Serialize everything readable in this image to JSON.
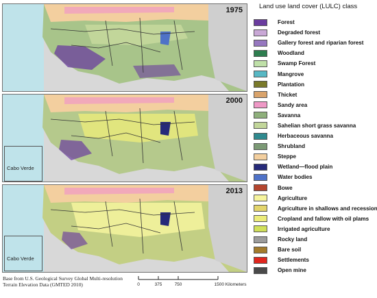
{
  "legend": {
    "title": "Land use land cover (LULC) class",
    "classes": [
      {
        "label": "Forest",
        "color": "#6a3c9e"
      },
      {
        "label": "Degraded forest",
        "color": "#c9a8d6"
      },
      {
        "label": "Gallery forest and riparian forest",
        "color": "#9677bf"
      },
      {
        "label": "Woodland",
        "color": "#2e7d4f"
      },
      {
        "label": "Swamp Forest",
        "color": "#bfe0a8"
      },
      {
        "label": "Mangrove",
        "color": "#58b8c4"
      },
      {
        "label": "Plantation",
        "color": "#7a7a2a"
      },
      {
        "label": "Thicket",
        "color": "#d9a36b"
      },
      {
        "label": "Sandy area",
        "color": "#ef98c6"
      },
      {
        "label": "Savanna",
        "color": "#8fb07c"
      },
      {
        "label": "Sahelian short grass savanna",
        "color": "#c2d69a"
      },
      {
        "label": "Herbaceous savanna",
        "color": "#2f8a8f"
      },
      {
        "label": "Shrubland",
        "color": "#7c9a76"
      },
      {
        "label": "Steppe",
        "color": "#f3cf9f"
      },
      {
        "label": "Wetland—flood plain",
        "color": "#262a7a"
      },
      {
        "label": "Water bodies",
        "color": "#4f72c7"
      },
      {
        "label": "Bowe",
        "color": "#b4452e"
      },
      {
        "label": "Agriculture",
        "color": "#f6f49e"
      },
      {
        "label": "Agriculture in shallows and recession",
        "color": "#e3d56c"
      },
      {
        "label": "Cropland and fallow with oil plams",
        "color": "#ecec7a"
      },
      {
        "label": "Irrigated agriculture",
        "color": "#d1e05a"
      },
      {
        "label": "Rocky land",
        "color": "#9c9c9c"
      },
      {
        "label": "Bare soil",
        "color": "#a37b2c"
      },
      {
        "label": "Settlements",
        "color": "#e0261e"
      },
      {
        "label": "Open mine",
        "color": "#4a4a4a"
      }
    ]
  },
  "maps": [
    {
      "year": "1975",
      "inset_label": ""
    },
    {
      "year": "2000",
      "inset_label": "Cabo Verde"
    },
    {
      "year": "2013",
      "inset_label": "Cabo Verde"
    }
  ],
  "source_note": "Base from U.S. Geological Survey Global Multi-resolution Terrain Elevation Data (GMTED 2010)",
  "scale": {
    "ticks": [
      "0",
      "375",
      "750",
      "1500 Kilometers"
    ],
    "tick_values_km": [
      0,
      375,
      750,
      1500
    ]
  }
}
